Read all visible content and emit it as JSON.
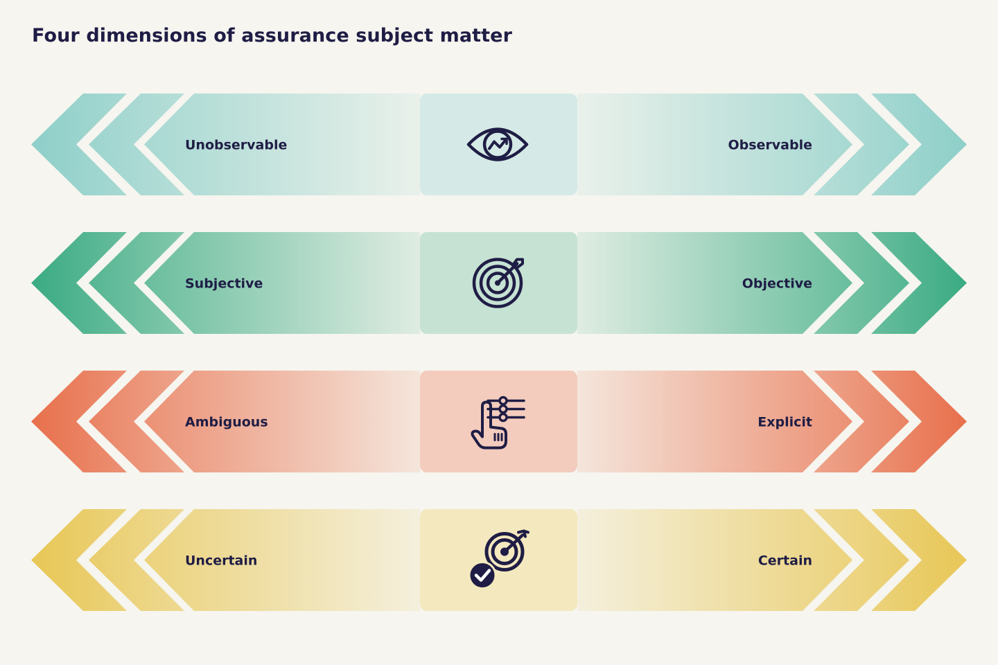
{
  "title": "Four dimensions of assurance subject matter",
  "dimensions": [
    {
      "left": "Unobservable",
      "right": "Observable",
      "icon": "eye-chart-icon",
      "color": "#8ecfc9",
      "center": "#d5eae6"
    },
    {
      "left": "Subjective",
      "right": "Objective",
      "icon": "target-arrow-icon",
      "color": "#3aab83",
      "center": "#c6e2d3"
    },
    {
      "left": "Ambiguous",
      "right": "Explicit",
      "icon": "hand-settings-icon",
      "color": "#e8704c",
      "center": "#f3ccbd"
    },
    {
      "left": "Uncertain",
      "right": "Certain",
      "icon": "target-check-icon",
      "color": "#e8c756",
      "center": "#f4e8bf"
    }
  ]
}
